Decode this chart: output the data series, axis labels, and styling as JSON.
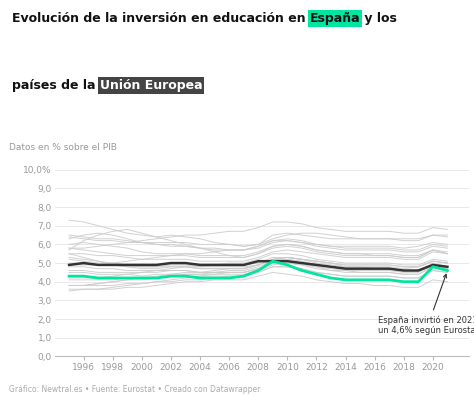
{
  "subtitle": "Datos en % sobre el PIB",
  "footer": "Gráfico: Newtral.es • Fuente: Eurostat • Creado con Datawrapper",
  "annotation": "España invirtió en 2021\nun 4,6% según Eurostat",
  "years": [
    1995,
    1996,
    1997,
    1998,
    1999,
    2000,
    2001,
    2002,
    2003,
    2004,
    2005,
    2006,
    2007,
    2008,
    2009,
    2010,
    2011,
    2012,
    2013,
    2014,
    2015,
    2016,
    2017,
    2018,
    2019,
    2020,
    2021
  ],
  "spain": [
    4.3,
    4.3,
    4.2,
    4.2,
    4.2,
    4.2,
    4.2,
    4.3,
    4.3,
    4.2,
    4.2,
    4.2,
    4.3,
    4.6,
    5.1,
    4.9,
    4.6,
    4.4,
    4.2,
    4.1,
    4.1,
    4.1,
    4.1,
    4.0,
    4.0,
    4.8,
    4.6
  ],
  "eu_avg": [
    4.9,
    5.0,
    4.9,
    4.9,
    4.9,
    4.9,
    4.9,
    5.0,
    5.0,
    4.9,
    4.9,
    4.9,
    4.9,
    5.1,
    5.1,
    5.1,
    5.0,
    4.9,
    4.8,
    4.7,
    4.7,
    4.7,
    4.7,
    4.6,
    4.6,
    4.9,
    4.8
  ],
  "eu_countries": [
    [
      6.4,
      6.3,
      6.2,
      6.2,
      6.1,
      6.1,
      6.1,
      6.1,
      6.1,
      6.0,
      6.0,
      6.0,
      5.9,
      6.0,
      6.3,
      6.5,
      6.6,
      6.6,
      6.5,
      6.4,
      6.3,
      6.3,
      6.3,
      6.3,
      6.3,
      6.5,
      6.5
    ],
    [
      7.3,
      7.2,
      7.0,
      6.8,
      6.6,
      6.5,
      6.4,
      6.5,
      6.4,
      6.3,
      6.1,
      6.0,
      5.9,
      6.0,
      6.5,
      6.6,
      6.5,
      6.4,
      6.3,
      6.3,
      6.3,
      6.3,
      6.3,
      6.2,
      6.2,
      6.5,
      6.4
    ],
    [
      6.5,
      6.4,
      6.3,
      6.3,
      6.2,
      6.1,
      6.0,
      6.0,
      5.9,
      5.8,
      5.8,
      5.7,
      5.7,
      5.8,
      6.1,
      6.2,
      6.1,
      6.0,
      5.9,
      5.9,
      5.9,
      5.9,
      5.9,
      5.8,
      5.9,
      6.1,
      6.0
    ],
    [
      5.5,
      5.5,
      5.4,
      5.4,
      5.3,
      5.2,
      5.2,
      5.2,
      5.2,
      5.1,
      5.1,
      5.1,
      5.1,
      5.3,
      5.6,
      5.7,
      5.6,
      5.5,
      5.4,
      5.3,
      5.3,
      5.3,
      5.3,
      5.2,
      5.2,
      5.6,
      5.5
    ],
    [
      5.8,
      5.7,
      5.6,
      5.5,
      5.4,
      5.4,
      5.4,
      5.4,
      5.4,
      5.3,
      5.3,
      5.3,
      5.3,
      5.5,
      5.9,
      6.0,
      5.9,
      5.7,
      5.6,
      5.5,
      5.5,
      5.4,
      5.4,
      5.3,
      5.3,
      5.7,
      5.5
    ],
    [
      5.2,
      5.1,
      5.0,
      5.0,
      4.9,
      4.9,
      4.9,
      5.0,
      5.0,
      4.9,
      4.9,
      4.9,
      4.9,
      5.0,
      5.3,
      5.3,
      5.2,
      5.0,
      4.9,
      4.8,
      4.8,
      4.8,
      4.8,
      4.7,
      4.8,
      5.1,
      5.0
    ],
    [
      4.8,
      4.8,
      4.7,
      4.7,
      4.6,
      4.6,
      4.6,
      4.6,
      4.6,
      4.5,
      4.5,
      4.5,
      4.5,
      4.7,
      5.0,
      5.1,
      5.0,
      4.9,
      4.8,
      4.7,
      4.7,
      4.7,
      4.7,
      4.6,
      4.6,
      4.9,
      4.8
    ],
    [
      5.0,
      5.0,
      4.9,
      4.9,
      4.8,
      4.8,
      4.8,
      4.9,
      4.9,
      4.8,
      4.8,
      4.8,
      4.8,
      4.9,
      5.2,
      5.3,
      5.2,
      5.1,
      5.0,
      4.9,
      4.9,
      4.9,
      4.9,
      4.8,
      4.8,
      5.1,
      5.0
    ],
    [
      4.5,
      4.5,
      4.4,
      4.4,
      4.4,
      4.3,
      4.4,
      4.4,
      4.4,
      4.4,
      4.4,
      4.4,
      4.4,
      4.6,
      4.9,
      5.0,
      4.9,
      4.8,
      4.6,
      4.6,
      4.5,
      4.5,
      4.5,
      4.4,
      4.4,
      4.8,
      4.7
    ],
    [
      3.6,
      3.6,
      3.6,
      3.6,
      3.7,
      3.7,
      3.8,
      3.9,
      4.0,
      4.0,
      4.1,
      4.1,
      4.1,
      4.3,
      4.5,
      4.4,
      4.3,
      4.1,
      4.0,
      3.9,
      3.9,
      3.8,
      3.8,
      3.7,
      3.7,
      4.1,
      4.0
    ],
    [
      3.8,
      3.8,
      3.8,
      3.8,
      3.9,
      3.9,
      4.0,
      4.0,
      4.1,
      4.1,
      4.2,
      4.3,
      4.3,
      4.5,
      4.8,
      4.8,
      4.7,
      4.5,
      4.4,
      4.3,
      4.3,
      4.3,
      4.3,
      4.2,
      4.2,
      4.6,
      4.5
    ],
    [
      4.1,
      4.1,
      4.1,
      4.1,
      4.2,
      4.2,
      4.2,
      4.3,
      4.3,
      4.3,
      4.3,
      4.3,
      4.3,
      4.5,
      4.8,
      4.8,
      4.7,
      4.5,
      4.4,
      4.3,
      4.3,
      4.3,
      4.3,
      4.2,
      4.2,
      4.6,
      4.5
    ],
    [
      5.5,
      5.3,
      5.1,
      4.9,
      4.8,
      4.7,
      4.7,
      4.8,
      4.8,
      4.7,
      4.7,
      4.7,
      4.7,
      4.9,
      5.2,
      5.3,
      5.2,
      5.1,
      5.0,
      4.8,
      4.8,
      4.7,
      4.7,
      4.6,
      4.6,
      5.0,
      4.8
    ],
    [
      4.6,
      4.6,
      4.5,
      4.5,
      4.5,
      4.5,
      4.5,
      4.6,
      4.6,
      4.5,
      4.5,
      4.5,
      4.5,
      4.7,
      5.0,
      5.1,
      5.0,
      4.9,
      4.8,
      4.7,
      4.7,
      4.7,
      4.7,
      4.6,
      4.6,
      4.9,
      4.8
    ],
    [
      5.7,
      6.2,
      6.5,
      6.7,
      6.8,
      6.6,
      6.4,
      6.2,
      6.0,
      5.8,
      5.6,
      5.4,
      5.3,
      5.5,
      5.8,
      5.9,
      5.8,
      5.6,
      5.5,
      5.4,
      5.4,
      5.4,
      5.4,
      5.3,
      5.3,
      5.7,
      5.5
    ],
    [
      3.5,
      3.6,
      3.6,
      3.7,
      3.8,
      3.9,
      4.0,
      4.1,
      4.2,
      4.3,
      4.4,
      4.5,
      4.5,
      4.7,
      5.0,
      5.0,
      4.9,
      4.7,
      4.6,
      4.5,
      4.5,
      4.5,
      4.5,
      4.4,
      4.4,
      4.8,
      4.6
    ],
    [
      6.3,
      6.5,
      6.6,
      6.5,
      6.3,
      6.1,
      6.0,
      5.9,
      5.9,
      5.8,
      5.7,
      5.7,
      5.7,
      5.9,
      6.2,
      6.3,
      6.2,
      6.0,
      5.9,
      5.8,
      5.8,
      5.8,
      5.8,
      5.7,
      5.7,
      6.0,
      5.9
    ],
    [
      6.0,
      6.1,
      6.0,
      5.9,
      5.8,
      5.6,
      5.5,
      5.5,
      5.5,
      5.4,
      5.4,
      5.4,
      5.4,
      5.6,
      5.9,
      6.0,
      5.9,
      5.7,
      5.6,
      5.5,
      5.5,
      5.5,
      5.5,
      5.4,
      5.4,
      5.7,
      5.6
    ],
    [
      3.8,
      3.8,
      3.9,
      4.0,
      4.1,
      4.2,
      4.3,
      4.4,
      4.5,
      4.5,
      4.6,
      4.7,
      4.7,
      4.9,
      5.2,
      5.2,
      5.1,
      4.9,
      4.8,
      4.7,
      4.7,
      4.7,
      4.7,
      4.6,
      4.6,
      4.9,
      4.8
    ],
    [
      4.2,
      4.2,
      4.2,
      4.3,
      4.4,
      4.5,
      4.6,
      4.7,
      4.8,
      4.8,
      4.9,
      5.0,
      5.0,
      5.2,
      5.5,
      5.5,
      5.4,
      5.2,
      5.1,
      5.0,
      5.0,
      5.0,
      5.0,
      4.9,
      4.9,
      5.2,
      5.1
    ],
    [
      4.9,
      4.9,
      4.9,
      5.0,
      5.1,
      5.2,
      5.3,
      5.4,
      5.5,
      5.5,
      5.6,
      5.7,
      5.7,
      5.9,
      6.2,
      6.2,
      6.1,
      5.9,
      5.8,
      5.7,
      5.7,
      5.7,
      5.7,
      5.6,
      5.6,
      5.9,
      5.8
    ],
    [
      5.8,
      5.8,
      5.9,
      6.0,
      6.1,
      6.2,
      6.3,
      6.4,
      6.5,
      6.5,
      6.6,
      6.7,
      6.7,
      6.9,
      7.2,
      7.2,
      7.1,
      6.9,
      6.8,
      6.7,
      6.7,
      6.7,
      6.7,
      6.6,
      6.6,
      6.9,
      6.8
    ],
    [
      5.3,
      5.2,
      5.1,
      5.0,
      4.9,
      4.8,
      4.8,
      4.8,
      4.8,
      4.7,
      4.7,
      4.7,
      4.7,
      4.9,
      5.2,
      5.3,
      5.2,
      5.1,
      5.0,
      4.9,
      4.9,
      4.9,
      4.9,
      4.8,
      4.8,
      5.1,
      5.0
    ],
    [
      3.8,
      3.8,
      3.9,
      4.0,
      4.1,
      4.1,
      4.2,
      4.3,
      4.4,
      4.4,
      4.5,
      4.6,
      4.6,
      4.8,
      5.1,
      5.1,
      5.0,
      4.8,
      4.7,
      4.6,
      4.6,
      4.6,
      4.6,
      4.5,
      4.5,
      4.9,
      4.7
    ]
  ],
  "spain_color": "#00e5a0",
  "eu_avg_color": "#333333",
  "eu_country_color": "#cccccc",
  "bg_color": "#ffffff",
  "spain_highlight_bg": "#00e5a0",
  "eu_highlight_bg": "#444444",
  "yticks": [
    0.0,
    1.0,
    2.0,
    3.0,
    4.0,
    5.0,
    6.0,
    7.0,
    8.0,
    9.0,
    10.0
  ],
  "ytick_labels": [
    "0,0",
    "1,0",
    "2,0",
    "3,0",
    "4,0",
    "5,0",
    "6,0",
    "7,0",
    "8,0",
    "9,0",
    "10,0%"
  ],
  "xtick_years": [
    1996,
    1998,
    2000,
    2002,
    2004,
    2006,
    2008,
    2010,
    2012,
    2014,
    2016,
    2018,
    2020
  ],
  "xlim": [
    1994,
    2022.5
  ],
  "ylim": [
    0.0,
    10.5
  ]
}
